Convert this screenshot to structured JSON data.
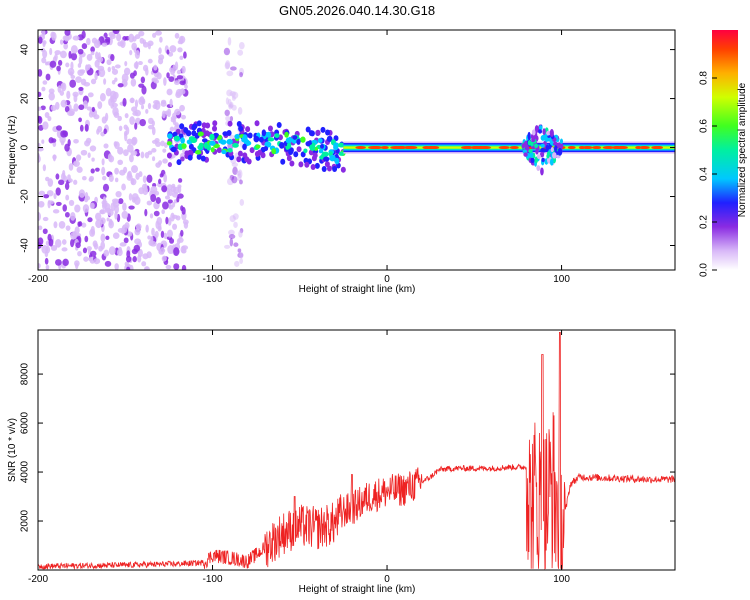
{
  "figure": {
    "title": "GN05.2026.040.14.30.G18"
  },
  "colors": {
    "frame": "#000000",
    "snr_line": "#ee2222",
    "background": "#ffffff"
  },
  "chart_data": [
    {
      "type": "heatmap",
      "name": "spectrogram",
      "title": "GN05.2026.040.14.30.G18",
      "xlabel": "Height of straight line (km)",
      "ylabel": "Frequency (Hz)",
      "xlim": [
        -200,
        165
      ],
      "ylim": [
        -50,
        48
      ],
      "xticks": [
        -200,
        -100,
        0,
        100
      ],
      "yticks": [
        -40,
        -20,
        0,
        20,
        40
      ],
      "colorbar": {
        "label": "Normalized spectral amplitude",
        "range": [
          0,
          1
        ],
        "ticks": [
          "0.0",
          "0.2",
          "0.4",
          "0.6",
          "0.8"
        ]
      },
      "features": [
        {
          "region": "noise",
          "x_range": [
            -200,
            -115
          ],
          "freq_range": [
            -50,
            48
          ],
          "amplitude": 0.1
        },
        {
          "region": "noise-column",
          "x_range": [
            -92,
            -83
          ],
          "freq_range": [
            -50,
            48
          ],
          "amplitude": 0.05
        },
        {
          "region": "signal-onset",
          "x_range": [
            -125,
            -25
          ],
          "freq_center": 2,
          "freq_spread": 8,
          "amplitude": 0.45
        },
        {
          "region": "signal-steady",
          "x_range": [
            -25,
            165
          ],
          "freq_center": 0,
          "freq_spread": 3,
          "amplitude": 0.9
        },
        {
          "region": "signal-burst",
          "x_range": [
            78,
            100
          ],
          "freq_center": 0,
          "freq_spread": 20,
          "amplitude": 0.5
        }
      ]
    },
    {
      "type": "line",
      "name": "snr",
      "xlabel": "Height of straight line (km)",
      "ylabel": "SNR (10 * v/v)",
      "xlim": [
        -200,
        165
      ],
      "ylim": [
        0,
        9800
      ],
      "xticks": [
        -200,
        -100,
        0,
        100
      ],
      "yticks": [
        2000,
        4000,
        6000,
        8000
      ],
      "series": [
        {
          "name": "SNR",
          "x": [
            -200,
            -150,
            -120,
            -105,
            -100,
            -90,
            -80,
            -70,
            -60,
            -50,
            -40,
            -30,
            -25,
            -20,
            -10,
            0,
            10,
            20,
            25,
            30,
            40,
            60,
            70,
            80,
            82,
            85,
            90,
            95,
            100,
            105,
            110,
            130,
            150,
            165
          ],
          "y": [
            150,
            200,
            250,
            300,
            600,
            500,
            350,
            900,
            1500,
            1800,
            1700,
            1900,
            2400,
            2500,
            3000,
            3200,
            3300,
            3600,
            3800,
            4100,
            4150,
            4150,
            4200,
            4200,
            2500,
            3000,
            2500,
            3500,
            1500,
            3500,
            3800,
            3750,
            3700,
            3700
          ],
          "peaks": [
            {
              "x": -53,
              "y": 3000
            },
            {
              "x": -20,
              "y": 3900
            },
            {
              "x": 89,
              "y": 8800
            },
            {
              "x": 99,
              "y": 9700
            }
          ]
        }
      ]
    }
  ]
}
